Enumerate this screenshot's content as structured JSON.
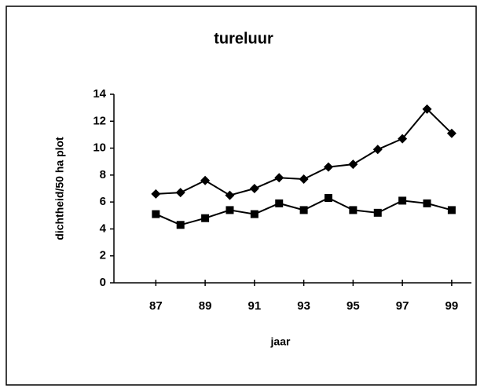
{
  "chart_data": {
    "type": "line",
    "title": "tureluur",
    "xlabel": "jaar",
    "ylabel": "dichtheid/50 ha plot",
    "x": [
      87,
      88,
      89,
      90,
      91,
      92,
      93,
      94,
      95,
      96,
      97,
      98,
      99
    ],
    "series": [
      {
        "color": "#000000",
        "marker": "diamond",
        "values": [
          6.6,
          6.7,
          7.6,
          6.5,
          7.0,
          7.8,
          7.7,
          8.6,
          8.8,
          9.9,
          10.7,
          12.9,
          11.1
        ]
      },
      {
        "color": "#000000",
        "marker": "square",
        "values": [
          5.1,
          4.3,
          4.8,
          5.4,
          5.1,
          5.9,
          5.4,
          6.3,
          5.4,
          5.2,
          6.1,
          5.9,
          5.4
        ]
      }
    ],
    "xlim": [
      85.3,
      99.8
    ],
    "xticks": [
      87,
      89,
      91,
      93,
      95,
      97,
      99
    ],
    "ylim": [
      0,
      14
    ],
    "yticks": [
      0,
      2,
      4,
      6,
      8,
      10,
      12,
      14
    ],
    "grid": false
  }
}
